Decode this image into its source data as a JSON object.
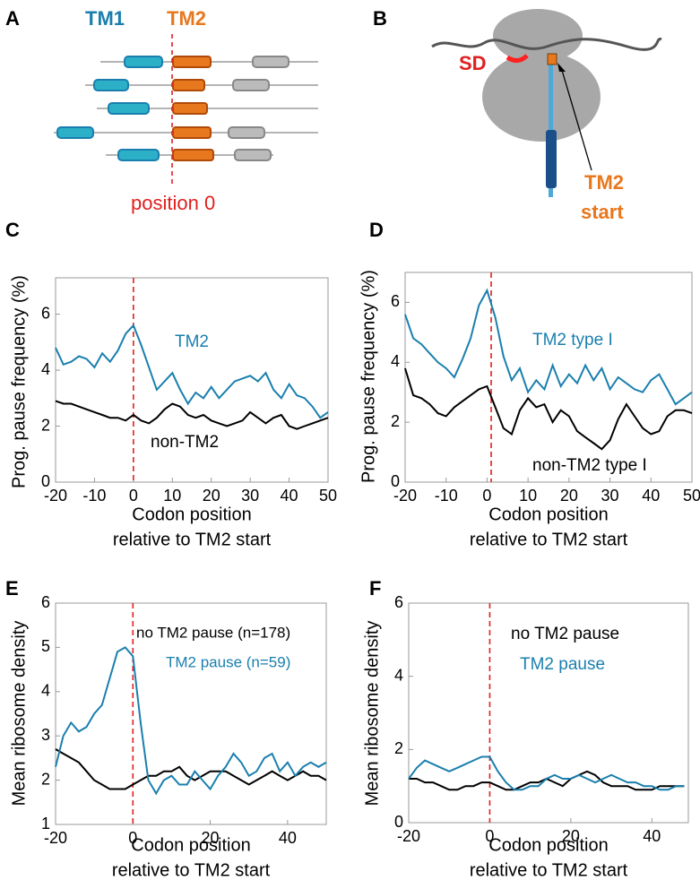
{
  "panels": {
    "A": "A",
    "B": "B",
    "C": "C",
    "D": "D",
    "E": "E",
    "F": "F"
  },
  "diagram_a": {
    "tm1": "TM1",
    "tm2": "TM2",
    "position": "position 0"
  },
  "diagram_b": {
    "sd": "SD",
    "label": [
      "TM2",
      "start"
    ]
  },
  "chart_data": [
    {
      "type": "line",
      "ylabel": "Prog. pause frequency (%)",
      "xlabel": [
        "Codon position",
        "relative to TM2 start"
      ],
      "x": [
        -20,
        -18,
        -16,
        -14,
        -12,
        -10,
        -8,
        -6,
        -4,
        -2,
        0,
        2,
        4,
        6,
        8,
        10,
        12,
        14,
        16,
        18,
        20,
        22,
        24,
        26,
        28,
        30,
        32,
        34,
        36,
        38,
        40,
        42,
        44,
        46,
        48,
        50
      ],
      "series": [
        {
          "name": "TM2",
          "color": "#1a7fae",
          "values": [
            4.8,
            4.2,
            4.3,
            4.5,
            4.4,
            4.1,
            4.6,
            4.3,
            4.7,
            5.3,
            5.6,
            4.9,
            4.1,
            3.3,
            3.6,
            3.9,
            3.3,
            2.8,
            3.2,
            3.0,
            3.4,
            3.0,
            3.3,
            3.6,
            3.7,
            3.8,
            3.6,
            3.9,
            3.3,
            3.0,
            3.5,
            3.1,
            3.0,
            2.7,
            2.3,
            2.5
          ]
        },
        {
          "name": "non-TM2",
          "color": "#000000",
          "values": [
            2.9,
            2.8,
            2.8,
            2.7,
            2.6,
            2.5,
            2.4,
            2.3,
            2.3,
            2.2,
            2.4,
            2.2,
            2.1,
            2.3,
            2.6,
            2.8,
            2.7,
            2.4,
            2.3,
            2.4,
            2.2,
            2.1,
            2.0,
            2.1,
            2.2,
            2.5,
            2.3,
            2.1,
            2.3,
            2.4,
            2.0,
            1.9,
            2.0,
            2.1,
            2.2,
            2.3
          ]
        }
      ],
      "xlim": [
        -20,
        50
      ],
      "xticks": [
        -20,
        -10,
        0,
        10,
        20,
        30,
        40,
        50
      ],
      "ylim": [
        0,
        7.3
      ],
      "yticks": [
        0,
        2,
        4,
        6
      ],
      "vline": 0,
      "vline_color": "#e02020"
    },
    {
      "type": "line",
      "ylabel": "Prog. pause frequency (%)",
      "xlabel": [
        "Codon position",
        "relative to TM2 start"
      ],
      "x": [
        -20,
        -18,
        -16,
        -14,
        -12,
        -10,
        -8,
        -6,
        -4,
        -2,
        0,
        2,
        4,
        6,
        8,
        10,
        12,
        14,
        16,
        18,
        20,
        22,
        24,
        26,
        28,
        30,
        32,
        34,
        36,
        38,
        40,
        42,
        44,
        46,
        48,
        50
      ],
      "series": [
        {
          "name": "TM2 type I",
          "color": "#1a7fae",
          "values": [
            5.6,
            4.8,
            4.6,
            4.3,
            4.0,
            3.8,
            3.5,
            4.1,
            4.8,
            5.9,
            6.4,
            5.5,
            4.2,
            3.4,
            3.8,
            3.0,
            3.4,
            3.1,
            3.9,
            3.2,
            3.6,
            3.3,
            3.9,
            3.4,
            3.8,
            3.1,
            3.5,
            3.3,
            3.1,
            3.0,
            3.4,
            3.6,
            3.1,
            2.6,
            2.8,
            3.0
          ]
        },
        {
          "name": "non-TM2 type I",
          "color": "#000000",
          "values": [
            3.8,
            2.9,
            2.8,
            2.6,
            2.3,
            2.2,
            2.5,
            2.7,
            2.9,
            3.1,
            3.2,
            2.5,
            1.8,
            1.6,
            2.4,
            2.8,
            2.5,
            2.6,
            2.0,
            2.4,
            2.2,
            1.7,
            1.5,
            1.3,
            1.1,
            1.4,
            2.1,
            2.6,
            2.2,
            1.8,
            1.6,
            1.7,
            2.2,
            2.4,
            2.4,
            2.3
          ]
        }
      ],
      "xlim": [
        -20,
        50
      ],
      "xticks": [
        -20,
        -10,
        0,
        10,
        20,
        30,
        40,
        50
      ],
      "ylim": [
        0,
        7
      ],
      "yticks": [
        0,
        2,
        4,
        6
      ],
      "vline": 1,
      "vline_color": "#e02020"
    },
    {
      "type": "line",
      "ylabel": "Mean ribosome density",
      "xlabel": [
        "Codon position",
        "relative to TM2 start"
      ],
      "x": [
        -20,
        -18,
        -16,
        -14,
        -12,
        -10,
        -8,
        -6,
        -4,
        -2,
        0,
        2,
        4,
        6,
        8,
        10,
        12,
        14,
        16,
        18,
        20,
        22,
        24,
        26,
        28,
        30,
        32,
        34,
        36,
        38,
        40,
        42,
        44,
        46,
        48,
        50
      ],
      "series": [
        {
          "name": "no TM2 pause (n=178)",
          "color": "#000000",
          "values": [
            2.7,
            2.6,
            2.5,
            2.4,
            2.2,
            2.0,
            1.9,
            1.8,
            1.8,
            1.8,
            1.9,
            2.0,
            2.1,
            2.1,
            2.2,
            2.2,
            2.3,
            2.1,
            2.0,
            2.1,
            2.2,
            2.2,
            2.2,
            2.1,
            2.0,
            1.9,
            2.0,
            2.1,
            2.2,
            2.1,
            2.0,
            2.1,
            2.2,
            2.1,
            2.1,
            2.0
          ]
        },
        {
          "name": "TM2 pause (n=59)",
          "color": "#1a7fae",
          "values": [
            2.3,
            3.0,
            3.3,
            3.1,
            3.2,
            3.5,
            3.7,
            4.3,
            4.9,
            5.0,
            4.8,
            3.3,
            2.0,
            1.7,
            2.0,
            2.1,
            1.9,
            1.9,
            2.2,
            2.0,
            1.8,
            2.1,
            2.3,
            2.6,
            2.4,
            2.1,
            2.2,
            2.5,
            2.6,
            2.2,
            2.4,
            2.1,
            2.3,
            2.4,
            2.3,
            2.4
          ]
        }
      ],
      "xlim": [
        -20,
        50
      ],
      "xticks": [
        -20,
        0,
        20,
        40
      ],
      "ylim": [
        1,
        6
      ],
      "yticks": [
        1,
        2,
        3,
        4,
        5,
        6
      ],
      "vline": 0,
      "vline_color": "#e02020"
    },
    {
      "type": "line",
      "ylabel": "Mean ribosome density",
      "xlabel": [
        "Codon position",
        "relative to TM2 start"
      ],
      "x": [
        -20,
        -18,
        -16,
        -14,
        -12,
        -10,
        -8,
        -6,
        -4,
        -2,
        0,
        2,
        4,
        6,
        8,
        10,
        12,
        14,
        16,
        18,
        20,
        22,
        24,
        26,
        28,
        30,
        32,
        34,
        36,
        38,
        40,
        42,
        44,
        46,
        48
      ],
      "series": [
        {
          "name": "no TM2 pause",
          "color": "#000000",
          "values": [
            1.2,
            1.2,
            1.1,
            1.1,
            1.0,
            0.9,
            0.9,
            1.0,
            1.0,
            1.1,
            1.1,
            1.0,
            0.9,
            0.9,
            1.0,
            1.1,
            1.1,
            1.2,
            1.1,
            1.0,
            1.2,
            1.3,
            1.4,
            1.3,
            1.1,
            1.0,
            1.0,
            1.0,
            0.9,
            0.9,
            0.9,
            1.0,
            1.0,
            1.0,
            1.0
          ]
        },
        {
          "name": "TM2 pause",
          "color": "#1a7fae",
          "values": [
            1.2,
            1.5,
            1.7,
            1.6,
            1.5,
            1.4,
            1.5,
            1.6,
            1.7,
            1.8,
            1.8,
            1.4,
            1.1,
            0.9,
            0.9,
            1.0,
            1.0,
            1.2,
            1.3,
            1.2,
            1.2,
            1.3,
            1.2,
            1.1,
            1.2,
            1.3,
            1.2,
            1.1,
            1.1,
            1.0,
            1.0,
            0.9,
            0.9,
            1.0,
            1.0
          ]
        }
      ],
      "xlim": [
        -20,
        49
      ],
      "xticks": [
        -20,
        0,
        20,
        40
      ],
      "ylim": [
        0,
        6
      ],
      "yticks": [
        0,
        2,
        4,
        6
      ],
      "vline": 0,
      "vline_color": "#e02020"
    }
  ]
}
